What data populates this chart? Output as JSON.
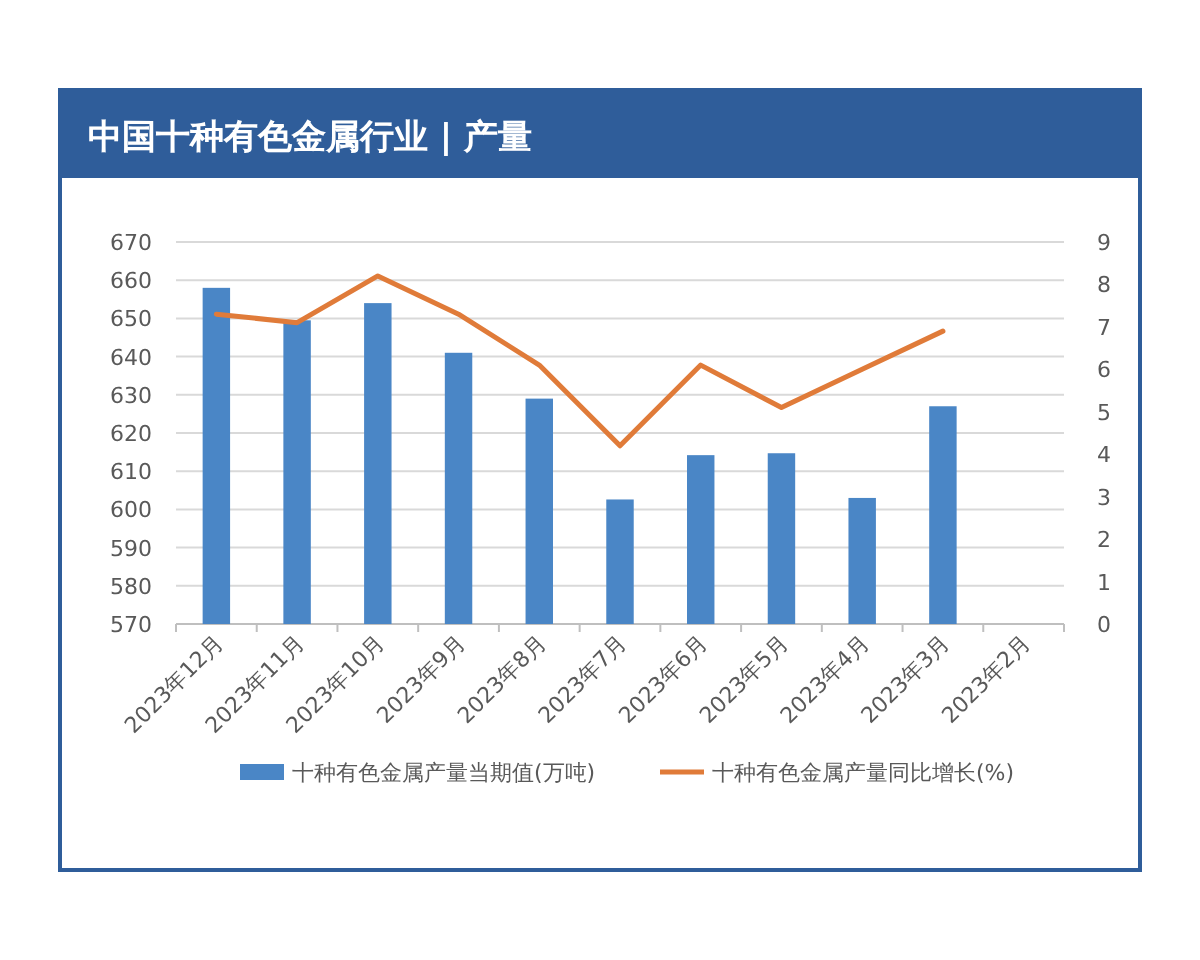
{
  "chart_data": {
    "type": "bar",
    "title": "中国十种有色金属行业 | 产量",
    "categories": [
      "2023年12月",
      "2023年11月",
      "2023年10月",
      "2023年9月",
      "2023年8月",
      "2023年7月",
      "2023年6月",
      "2023年5月",
      "2023年4月",
      "2023年3月",
      "2023年2月"
    ],
    "series": [
      {
        "name": "十种有色金属产量当期值(万吨)",
        "color": "#4a86c6",
        "values": [
          658,
          649.5,
          654,
          641,
          629,
          602.6,
          614.2,
          614.7,
          603,
          627,
          null
        ]
      },
      {
        "name": "十种有色金属产量同比增长(%)",
        "type": "line",
        "axis": "y2",
        "color": "#e07b39",
        "values": [
          7.3,
          7.1,
          8.2,
          7.3,
          6.1,
          4.2,
          6.1,
          5.1,
          6.0,
          6.9,
          null
        ]
      }
    ],
    "ylim": [
      570,
      670
    ],
    "yticks": [
      570,
      580,
      590,
      600,
      610,
      620,
      630,
      640,
      650,
      660,
      670
    ],
    "y2lim": [
      0,
      9
    ],
    "y2ticks": [
      0,
      1,
      2,
      3,
      4,
      5,
      6,
      7,
      8,
      9
    ],
    "grid": "y",
    "legend": "bottom"
  }
}
